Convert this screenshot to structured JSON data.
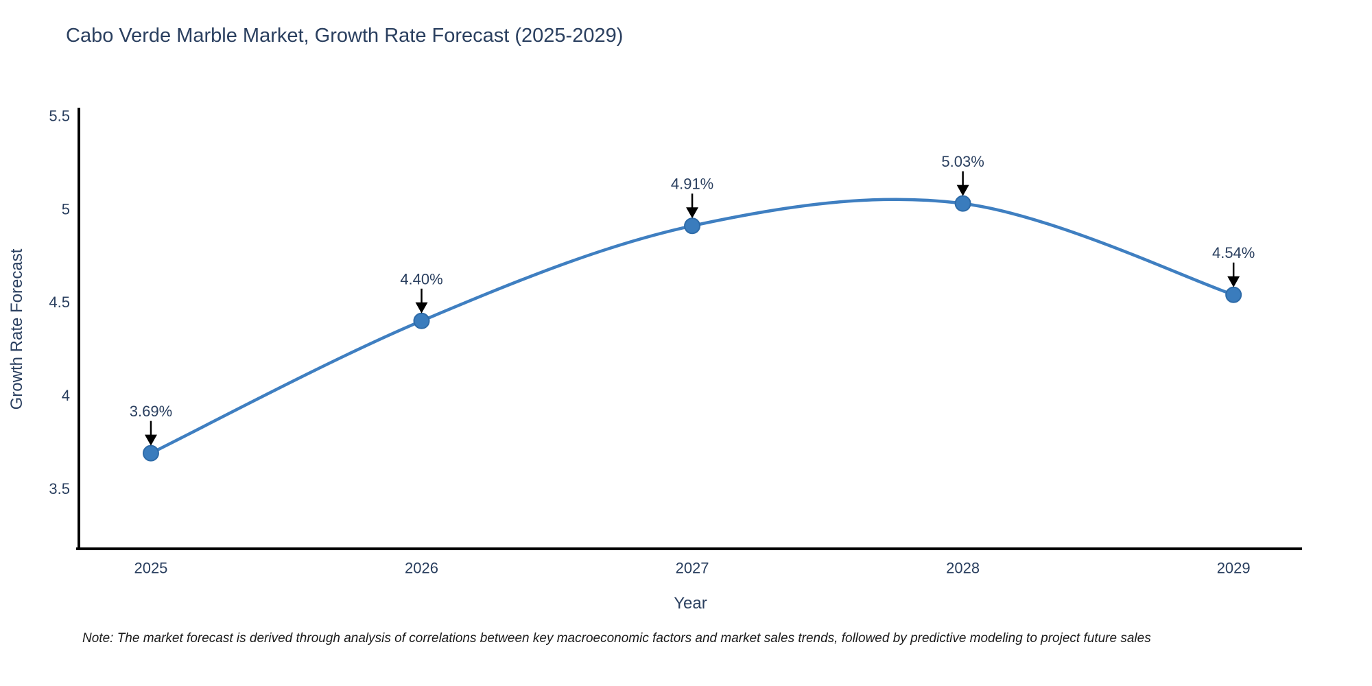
{
  "figure": {
    "title": "Cabo Verde Marble Market, Growth Rate Forecast (2025-2029)",
    "note": "Note: The market forecast is derived through analysis of correlations between key macroeconomic factors and market sales trends, followed by predictive modeling to project future sales"
  },
  "chart_data": {
    "type": "line",
    "line_shape": "spline",
    "title": "Cabo Verde Marble Market, Growth Rate Forecast (2025-2029)",
    "xlabel": "Year",
    "ylabel": "Growth Rate Forecast",
    "x": [
      2025,
      2026,
      2027,
      2028,
      2029
    ],
    "xticklabels": [
      "2025",
      "2026",
      "2027",
      "2028",
      "2029"
    ],
    "series": [
      {
        "name": "Growth Rate Forecast",
        "values": [
          3.69,
          4.4,
          4.91,
          5.03,
          4.54
        ]
      }
    ],
    "point_labels": [
      "3.69%",
      "4.40%",
      "4.91%",
      "5.03%",
      "4.54%"
    ],
    "yticks": [
      3.5,
      4,
      4.5,
      5,
      5.5
    ],
    "ytick_labels": [
      "3.5",
      "4",
      "4.5",
      "5",
      "5.5"
    ],
    "ylim": [
      3.177,
      5.544
    ],
    "xlim": [
      2024.734,
      2029.253
    ],
    "grid": false,
    "legend": "none",
    "annotation_style": "value labels with downward black arrows above each data point",
    "colors": {
      "line": "#3f7fc1",
      "marker_fill": "#3a7cbd",
      "marker_edge": "#2e6ba8",
      "arrow": "#000000",
      "axis": "#000000",
      "text": "#2a3f5f",
      "note_text": "#1a1a1a",
      "background": "#ffffff"
    }
  }
}
